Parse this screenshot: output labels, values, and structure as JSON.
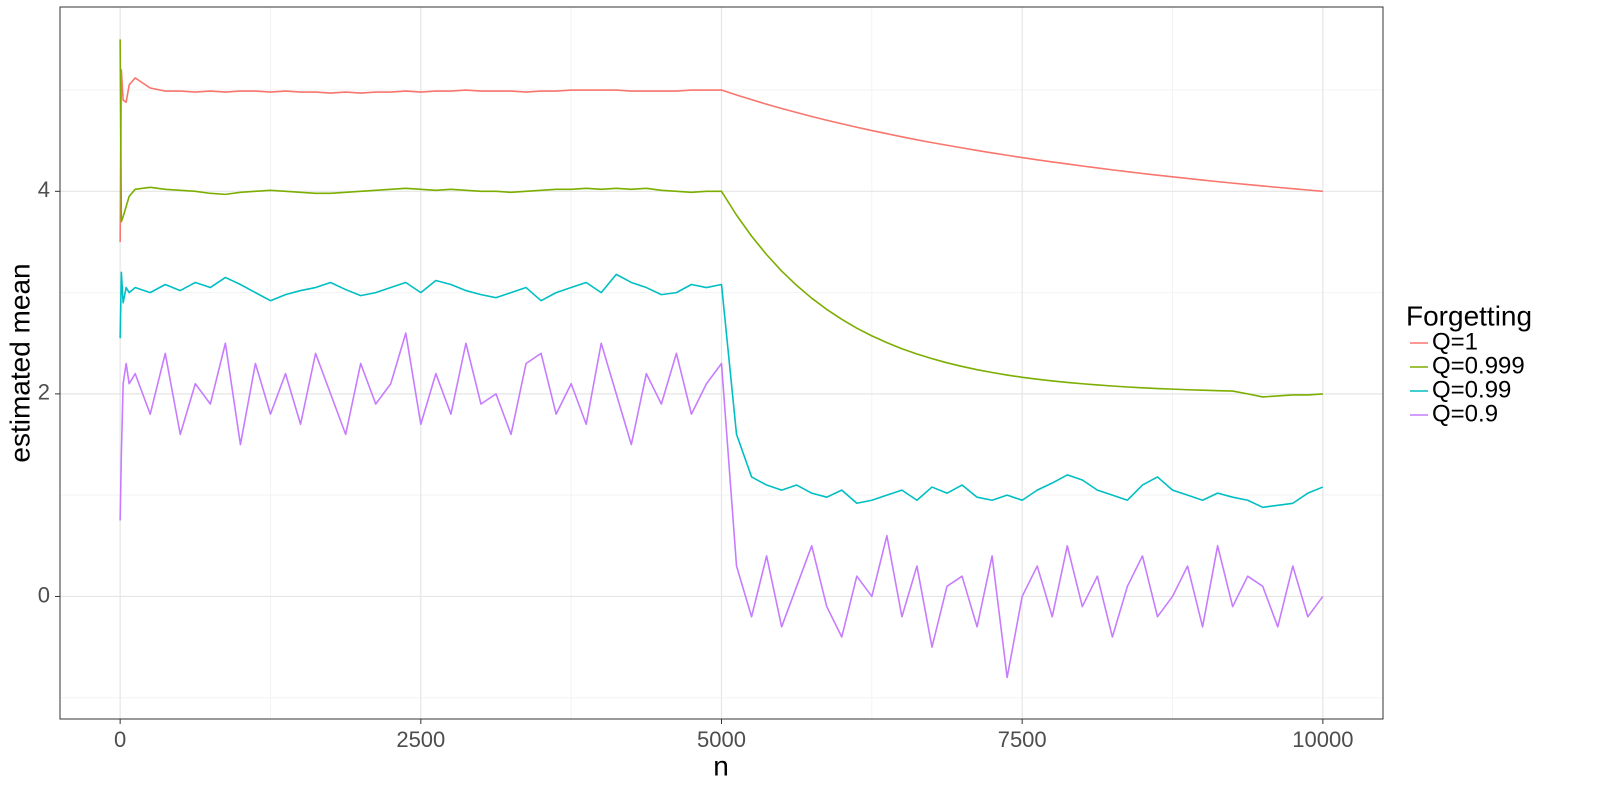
{
  "chart_data": {
    "type": "line",
    "x_label": "n",
    "y_label": "estimated mean",
    "legend_title": "Forgetting",
    "legend": "right",
    "grid": true,
    "xlim": [
      -500,
      10500
    ],
    "xticks": [
      0,
      2500,
      5000,
      7500,
      10000
    ],
    "xminor": [
      1250,
      3750,
      6250,
      8750
    ],
    "ylim": [
      -1.21,
      5.82
    ],
    "yticks": [
      0,
      2,
      4
    ],
    "yminor": [
      -1,
      1,
      3,
      5
    ],
    "x": [
      0,
      10,
      25,
      50,
      75,
      125,
      250,
      375,
      500,
      625,
      750,
      875,
      1000,
      1125,
      1250,
      1375,
      1500,
      1625,
      1750,
      1875,
      2000,
      2125,
      2250,
      2375,
      2500,
      2625,
      2750,
      2875,
      3000,
      3125,
      3250,
      3375,
      3500,
      3625,
      3750,
      3875,
      4000,
      4125,
      4250,
      4375,
      4500,
      4625,
      4750,
      4875,
      5000,
      5125,
      5250,
      5375,
      5500,
      5625,
      5750,
      5875,
      6000,
      6125,
      6250,
      6375,
      6500,
      6625,
      6750,
      6875,
      7000,
      7125,
      7250,
      7375,
      7500,
      7625,
      7750,
      7875,
      8000,
      8125,
      8250,
      8375,
      8500,
      8625,
      8750,
      8875,
      9000,
      9125,
      9250,
      9375,
      9500,
      9625,
      9750,
      9875,
      10000
    ],
    "series": [
      {
        "name": "Q=1",
        "color": "#F8766D",
        "values": [
          3.5,
          5.2,
          4.9,
          4.88,
          5.05,
          5.12,
          5.02,
          4.99,
          4.99,
          4.98,
          4.99,
          4.98,
          4.99,
          4.99,
          4.98,
          4.99,
          4.98,
          4.98,
          4.97,
          4.98,
          4.97,
          4.98,
          4.98,
          4.99,
          4.98,
          4.99,
          4.99,
          5.0,
          4.99,
          4.99,
          4.99,
          4.98,
          4.99,
          4.99,
          5.0,
          5.0,
          5.0,
          5.0,
          4.99,
          4.99,
          4.99,
          4.99,
          5.0,
          5.0,
          5.0,
          4.951,
          4.905,
          4.86,
          4.818,
          4.778,
          4.739,
          4.702,
          4.667,
          4.633,
          4.6,
          4.569,
          4.538,
          4.509,
          4.481,
          4.455,
          4.429,
          4.404,
          4.379,
          4.356,
          4.333,
          4.311,
          4.29,
          4.27,
          4.25,
          4.231,
          4.212,
          4.194,
          4.176,
          4.159,
          4.143,
          4.127,
          4.111,
          4.096,
          4.081,
          4.067,
          4.053,
          4.039,
          4.026,
          4.013,
          4.0
        ]
      },
      {
        "name": "Q=0.999",
        "color": "#7CAE00",
        "values": [
          5.5,
          3.7,
          3.75,
          3.85,
          3.95,
          4.02,
          4.04,
          4.02,
          4.01,
          4.0,
          3.98,
          3.97,
          3.99,
          4.0,
          4.01,
          4.0,
          3.99,
          3.98,
          3.98,
          3.99,
          4.0,
          4.01,
          4.02,
          4.03,
          4.02,
          4.01,
          4.02,
          4.01,
          4.0,
          4.0,
          3.99,
          4.0,
          4.01,
          4.02,
          4.02,
          4.03,
          4.02,
          4.03,
          4.02,
          4.03,
          4.01,
          4.0,
          3.99,
          4.0,
          4.0,
          3.765,
          3.558,
          3.375,
          3.213,
          3.071,
          2.945,
          2.834,
          2.736,
          2.649,
          2.573,
          2.506,
          2.446,
          2.394,
          2.348,
          2.307,
          2.271,
          2.239,
          2.211,
          2.186,
          2.164,
          2.145,
          2.128,
          2.113,
          2.1,
          2.088,
          2.078,
          2.068,
          2.06,
          2.053,
          2.047,
          2.041,
          2.037,
          2.032,
          2.028,
          2.0,
          1.97,
          1.98,
          1.99,
          1.99,
          2.0
        ]
      },
      {
        "name": "Q=0.99",
        "color": "#00BFC4",
        "values": [
          2.55,
          3.2,
          2.9,
          3.05,
          3.0,
          3.05,
          3.0,
          3.08,
          3.02,
          3.1,
          3.05,
          3.15,
          3.08,
          3.0,
          2.92,
          2.98,
          3.02,
          3.05,
          3.1,
          3.03,
          2.97,
          3.0,
          3.05,
          3.1,
          3.0,
          3.12,
          3.08,
          3.02,
          2.98,
          2.95,
          3.0,
          3.05,
          2.92,
          3.0,
          3.05,
          3.1,
          3.0,
          3.18,
          3.1,
          3.05,
          2.98,
          3.0,
          3.08,
          3.05,
          3.08,
          1.6,
          1.18,
          1.1,
          1.05,
          1.1,
          1.02,
          0.98,
          1.05,
          0.92,
          0.95,
          1.0,
          1.05,
          0.95,
          1.08,
          1.02,
          1.1,
          0.98,
          0.95,
          1.0,
          0.95,
          1.05,
          1.12,
          1.2,
          1.15,
          1.05,
          1.0,
          0.95,
          1.1,
          1.18,
          1.05,
          1.0,
          0.95,
          1.02,
          0.98,
          0.95,
          0.88,
          0.9,
          0.92,
          1.02,
          1.08
        ]
      },
      {
        "name": "Q=0.9",
        "color": "#C77CFF",
        "values": [
          0.75,
          1.4,
          2.1,
          2.3,
          2.1,
          2.2,
          1.8,
          2.4,
          1.6,
          2.1,
          1.9,
          2.5,
          1.5,
          2.3,
          1.8,
          2.2,
          1.7,
          2.4,
          2.0,
          1.6,
          2.3,
          1.9,
          2.1,
          2.6,
          1.7,
          2.2,
          1.8,
          2.5,
          1.9,
          2.0,
          1.6,
          2.3,
          2.4,
          1.8,
          2.1,
          1.7,
          2.5,
          2.0,
          1.5,
          2.2,
          1.9,
          2.4,
          1.8,
          2.1,
          2.3,
          0.3,
          -0.2,
          0.4,
          -0.3,
          0.1,
          0.5,
          -0.1,
          -0.4,
          0.2,
          0.0,
          0.6,
          -0.2,
          0.3,
          -0.5,
          0.1,
          0.2,
          -0.3,
          0.4,
          -0.8,
          0.0,
          0.3,
          -0.2,
          0.5,
          -0.1,
          0.2,
          -0.4,
          0.1,
          0.4,
          -0.2,
          0.0,
          0.3,
          -0.3,
          0.5,
          -0.1,
          0.2,
          0.1,
          -0.3,
          0.3,
          -0.2,
          0.0
        ]
      }
    ]
  }
}
